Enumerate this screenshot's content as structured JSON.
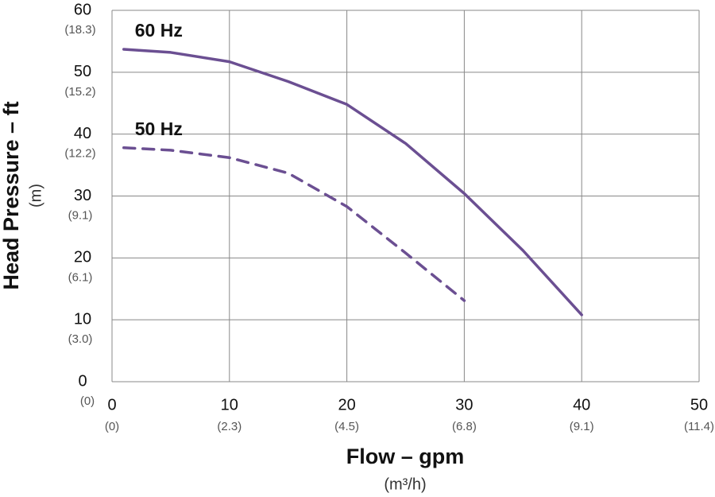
{
  "chart_data": {
    "type": "line",
    "xlabel": "Flow – gpm",
    "xlabel_sub": "(m³/h)",
    "ylabel": "Head Pressure – ft",
    "ylabel_sub": "(m)",
    "xlim": [
      0,
      50
    ],
    "xticks": [
      0,
      10,
      20,
      30,
      40,
      50
    ],
    "xticks_sub": [
      "(0)",
      "(2.3)",
      "(4.5)",
      "(6.8)",
      "(9.1)",
      "(11.4)"
    ],
    "ylim": [
      0,
      60
    ],
    "yticks": [
      0,
      10,
      20,
      30,
      40,
      50,
      60
    ],
    "yticks_sub": [
      "(0)",
      "(3.0)",
      "(6.1)",
      "(9.1)",
      "(12.2)",
      "(15.2)",
      "(18.3)"
    ],
    "grid": true,
    "series": [
      {
        "name": "60 Hz",
        "color": "#6b4f92",
        "dash": false,
        "x": [
          1,
          5,
          10,
          15,
          20,
          25,
          30,
          35,
          40
        ],
        "values": [
          53.7,
          53.2,
          51.7,
          48.5,
          44.8,
          38.5,
          30.4,
          21.2,
          10.8
        ]
      },
      {
        "name": "50 Hz",
        "color": "#6b4f92",
        "dash": true,
        "x": [
          1,
          5,
          10,
          15,
          20,
          25,
          30
        ],
        "values": [
          37.8,
          37.4,
          36.2,
          33.7,
          28.3,
          20.8,
          13.1
        ]
      }
    ]
  }
}
